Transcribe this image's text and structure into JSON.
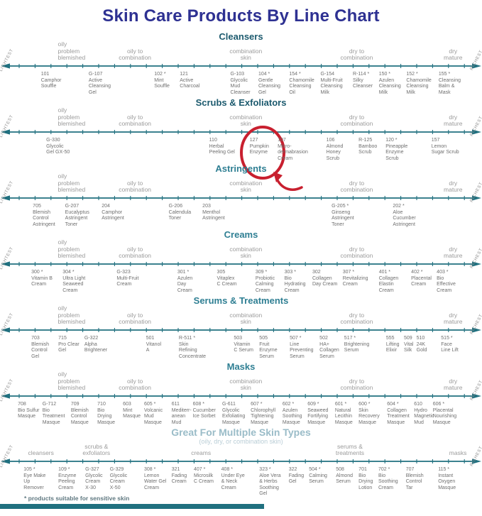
{
  "title": "Skin Care Products By Line Chart",
  "footnote": "* products suitable for sensitive skin",
  "side_labels": {
    "left": "LIGHTEST",
    "right": "RICHEST"
  },
  "colors": {
    "title": "#2e3192",
    "axis": "#20707f",
    "category_text": "#9b9b9b",
    "product_text": "#6f6f6f",
    "side_label": "#8e8e8e",
    "gfm_subtitle": "#b9cdd6",
    "footnote": "#5f7880",
    "annotation_red": "#c8202f"
  },
  "annotation": {
    "type": "circle-and-arrow-highlight",
    "target_product": "127 Pumpkin Enzyme",
    "section": "Scrubs & Exfoliators",
    "color": "#c8202f"
  },
  "chart_data": {
    "type": "scatter",
    "description": "Skin care products of each line positioned along a spectrum from oily/problem/blemished skin (left, lightest products) to dry/mature skin (right, richest products). x = percent position along the axis. Codes marked with * are suitable for sensitive skin.",
    "axis_left_label": "LIGHTEST",
    "axis_right_label": "RICHEST",
    "standard_categories": [
      {
        "label": "oily\nproblem\nblemished",
        "x": 12,
        "align": "left"
      },
      {
        "label": "oily to\ncombination",
        "x": 28,
        "align": "center"
      },
      {
        "label": "combination\nskin",
        "x": 51,
        "align": "center"
      },
      {
        "label": "dry to\ncombination",
        "x": 74,
        "align": "center"
      },
      {
        "label": "dry\nmature",
        "x": 94,
        "align": "center"
      }
    ],
    "sections": [
      {
        "name": "Cleansers",
        "header_color": "#1c5a6e",
        "products": [
          {
            "code": "101",
            "name": "Camphor\nSouffle",
            "x": 8.5
          },
          {
            "code": "G-107",
            "name": "Active\nCleansing\nGel",
            "x": 18.4
          },
          {
            "code": "102 *",
            "name": "Mint\nSouffle",
            "x": 32.0
          },
          {
            "code": "121",
            "name": "Active\nCharcoal",
            "x": 37.3
          },
          {
            "code": "G-103",
            "name": "Glycolic\nMud\nCleanser",
            "x": 47.8
          },
          {
            "code": "104 *",
            "name": "Gentle\nCleansing\nGel",
            "x": 53.6
          },
          {
            "code": "154 *",
            "name": "Chamomile\nCleansing\nOil",
            "x": 60.0
          },
          {
            "code": "G-154",
            "name": "Multi-Fruit\nCleansing\nMilk",
            "x": 66.5
          },
          {
            "code": "R-114 *",
            "name": "Silky\nCleanser",
            "x": 73.2
          },
          {
            "code": "150 *",
            "name": "Azulen\nCleansing\nMilk",
            "x": 78.6
          },
          {
            "code": "152 *",
            "name": "Chamomile\nCleansing\nMilk",
            "x": 84.3
          },
          {
            "code": "155 *",
            "name": "Cleansing\nBalm &\nMask",
            "x": 91.0
          }
        ]
      },
      {
        "name": "Scrubs & Exfoliators",
        "header_color": "#1c5a6e",
        "products": [
          {
            "code": "G-330",
            "name": "Glycolic\nGel GX-50",
            "x": 9.6
          },
          {
            "code": "110",
            "name": "Herbal\nPeeling Gel",
            "x": 43.4
          },
          {
            "code": "127",
            "name": "Pumpkin\nEnzyme",
            "x": 51.8,
            "annotated": true
          },
          {
            "code": "107",
            "name": "Micro-\ndermabrasion\nCream",
            "x": 57.6
          },
          {
            "code": "106",
            "name": "Almond\nHoney\nScrub",
            "x": 67.7
          },
          {
            "code": "R-125",
            "name": "Bamboo\nScrub",
            "x": 74.4
          },
          {
            "code": "120 *",
            "name": "Pineapple\nEnzyme\nScrub",
            "x": 80.0
          },
          {
            "code": "157",
            "name": "Lemon\nSugar Scrub",
            "x": 89.5
          }
        ]
      },
      {
        "name": "Astringents",
        "header_color": "#2f7f93",
        "products": [
          {
            "code": "705",
            "name": "Blemish\nControl\nAstringent",
            "x": 6.8
          },
          {
            "code": "G-207",
            "name": "Eucalyptus\nAstringent\nToner",
            "x": 13.5
          },
          {
            "code": "204",
            "name": "Camphor\nAstringent",
            "x": 21.1
          },
          {
            "code": "G-206",
            "name": "Calendula\nToner",
            "x": 35.0
          },
          {
            "code": "203",
            "name": "Menthol\nAstringent",
            "x": 42.0
          },
          {
            "code": "G-205 *",
            "name": "Ginseng\nAstringent\nToner",
            "x": 68.8
          },
          {
            "code": "202 *",
            "name": "Aloe\nCucumber\nAstringent",
            "x": 81.5
          }
        ]
      },
      {
        "name": "Creams",
        "header_color": "#2f7f93",
        "products": [
          {
            "code": "300 *",
            "name": "Vitamin B\nCream",
            "x": 6.5
          },
          {
            "code": "304 *",
            "name": "Ultra Light\nSeaweed\nCream",
            "x": 13.0
          },
          {
            "code": "G-323",
            "name": "Multi-Fruit\nCream",
            "x": 24.2
          },
          {
            "code": "301 *",
            "name": "Azulen\nDay\nCream",
            "x": 36.8
          },
          {
            "code": "305",
            "name": "Vitaplex\nC Cream",
            "x": 45.0
          },
          {
            "code": "309 *",
            "name": "Probiotic\nCalming\nCream",
            "x": 53.0
          },
          {
            "code": "303 *",
            "name": "Bio\nHydrating\nCream",
            "x": 59.0
          },
          {
            "code": "302",
            "name": "Collagen\nDay Cream",
            "x": 64.8
          },
          {
            "code": "307 *",
            "name": "Revitalizing\nCream",
            "x": 71.1
          },
          {
            "code": "401 *",
            "name": "Collagen\nElastin\nCream",
            "x": 78.6
          },
          {
            "code": "402 *",
            "name": "Placental\nCream",
            "x": 85.3
          },
          {
            "code": "403 *",
            "name": "Bio\nEffective\nCream",
            "x": 90.6
          }
        ]
      },
      {
        "name": "Serums & Treatments",
        "header_color": "#2f7f93",
        "products": [
          {
            "code": "703",
            "name": "Blemish\nControl\nGel",
            "x": 6.5
          },
          {
            "code": "715",
            "name": "Pro Clear\nGel",
            "x": 12.1
          },
          {
            "code": "G-322",
            "name": "Alpha\nBrightener",
            "x": 17.5
          },
          {
            "code": "501",
            "name": "Vitanol\nA",
            "x": 30.3
          },
          {
            "code": "R-511 *",
            "name": "Skin\nRefining\nConcentrate",
            "x": 37.1
          },
          {
            "code": "503",
            "name": "Vitamin\nC Serum",
            "x": 48.5
          },
          {
            "code": "505",
            "name": "Fruit\nEnzyme\nSerum",
            "x": 53.8
          },
          {
            "code": "507 *",
            "name": "Line\nPreventing\nSerum",
            "x": 60.1
          },
          {
            "code": "502",
            "name": "HA+\nCollagen\nSerum",
            "x": 66.3
          },
          {
            "code": "517 *",
            "name": "Brightening\nSerum",
            "x": 71.4
          },
          {
            "code": "555",
            "name": "Lifting\nElixir",
            "x": 80.1
          },
          {
            "code": "509",
            "name": "Vital\nSilk",
            "x": 83.8
          },
          {
            "code": "510",
            "name": "24K\nGold",
            "x": 86.4
          },
          {
            "code": "515 *",
            "name": "Face\nLine Lift",
            "x": 91.5
          }
        ]
      },
      {
        "name": "Masks",
        "header_color": "#2f7f93",
        "products": [
          {
            "code": "708",
            "name": "Bio Sulfur\nMasque",
            "x": 3.7
          },
          {
            "code": "G-712",
            "name": "Bio\nTreatment\nMasque",
            "x": 8.8
          },
          {
            "code": "709",
            "name": "Blemish\nControl\nMasque",
            "x": 14.7
          },
          {
            "code": "710",
            "name": "Bio\nDrying\nMasque",
            "x": 20.2
          },
          {
            "code": "603",
            "name": "Mint\nMasque",
            "x": 25.5
          },
          {
            "code": "605 *",
            "name": "Volcanic\nMud\nMasque",
            "x": 29.9
          },
          {
            "code": "611",
            "name": "Mediterr-\nanean\nMud",
            "x": 35.6
          },
          {
            "code": "608 *",
            "name": "Cucumber\nIce Sorbet",
            "x": 40.0
          },
          {
            "code": "G-611",
            "name": "Glycolic\nExfoliating\nMasque",
            "x": 46.1
          },
          {
            "code": "607 *",
            "name": "Chlorophyll\nTightening\nMasque",
            "x": 52.0
          },
          {
            "code": "602 *",
            "name": "Azulen\nSoothing\nMasque",
            "x": 58.6
          },
          {
            "code": "609 *",
            "name": "Seaweed\nFortifying\nMasque",
            "x": 63.8
          },
          {
            "code": "601 *",
            "name": "Natural\nLecithin\nMasque",
            "x": 69.5
          },
          {
            "code": "600 *",
            "name": "Skin\nRecovery\nMasque",
            "x": 74.4
          },
          {
            "code": "604 *",
            "name": "Collagen\nTreatment\nMasque",
            "x": 80.3
          },
          {
            "code": "610",
            "name": "Hydro\nMagnetic\nMud",
            "x": 85.9
          },
          {
            "code": "606 *",
            "name": "Placental\nNourishing\nMasque",
            "x": 89.8
          }
        ]
      },
      {
        "name": "Great For Multiple Skin Types",
        "header_color": "#9abcc8",
        "subtitle": "(oily, dry, or combination skin)",
        "categories": [
          {
            "label": "cleansers",
            "x": 8.5,
            "align": "center"
          },
          {
            "label": "scrubs &\nexfoliators",
            "x": 20.0,
            "align": "center"
          },
          {
            "label": "creams",
            "x": 41.7,
            "align": "center"
          },
          {
            "label": "serums &\ntreatments",
            "x": 72.6,
            "align": "center"
          },
          {
            "label": "masks",
            "x": 95.0,
            "align": "center"
          }
        ],
        "products": [
          {
            "code": "105 *",
            "name": "Eye Make\nUp\nRemover",
            "x": 4.9
          },
          {
            "code": "109 *",
            "name": "Enzyme\nPeeling\nCream",
            "x": 12.1
          },
          {
            "code": "G-327",
            "name": "Glycolic\nCream\nX-30",
            "x": 17.7
          },
          {
            "code": "G-329",
            "name": "Glycolic\nCream\nX-50",
            "x": 22.8
          },
          {
            "code": "308 *",
            "name": "Lemon\nWater Gel\nCream",
            "x": 29.9
          },
          {
            "code": "321",
            "name": "Fading\nCream",
            "x": 35.6
          },
          {
            "code": "407 *",
            "name": "Microsilk\nC Cream",
            "x": 40.2
          },
          {
            "code": "408 *",
            "name": "Under Eye\n& Neck\nCream",
            "x": 45.9
          },
          {
            "code": "323 *",
            "name": "Aloe Vera\n& Herbs\nSoothing\nGel",
            "x": 53.8
          },
          {
            "code": "322",
            "name": "Fading\nGel",
            "x": 59.9
          },
          {
            "code": "504 *",
            "name": "Calming\nSerum",
            "x": 64.1
          },
          {
            "code": "508",
            "name": "Almond\nSerum",
            "x": 69.7
          },
          {
            "code": "701",
            "name": "Bio\nDrying\nLotion",
            "x": 74.4
          },
          {
            "code": "702 *",
            "name": "Bio\nSoothing\nCream",
            "x": 78.5
          },
          {
            "code": "707",
            "name": "Blemish\nControl\nTar",
            "x": 84.2
          },
          {
            "code": "115 *",
            "name": "Instant\nOxygen\nMasque",
            "x": 90.9
          }
        ]
      }
    ]
  }
}
